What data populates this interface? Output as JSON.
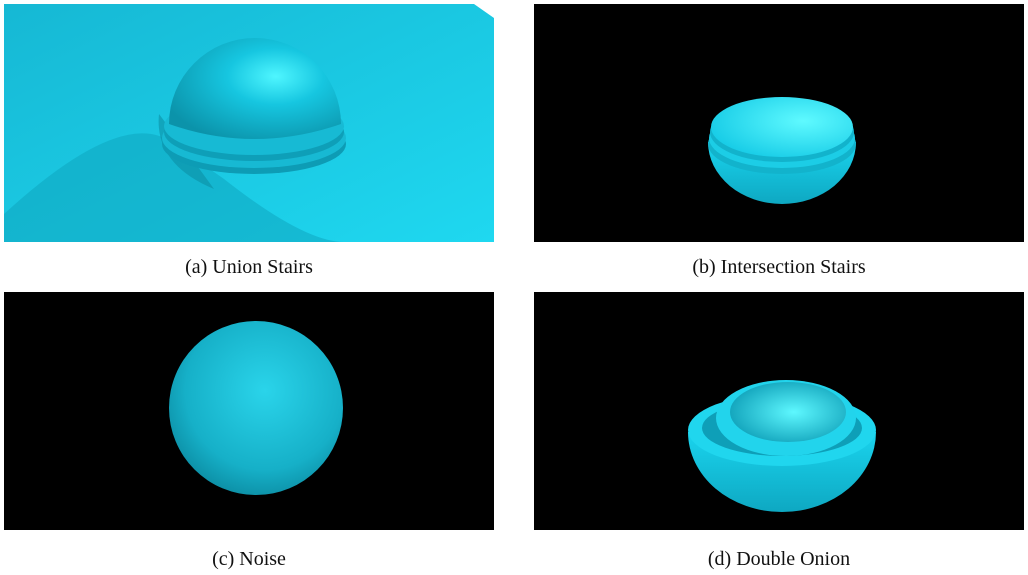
{
  "figure": {
    "panels": [
      {
        "caption": "(a) Union Stairs"
      },
      {
        "caption": "(b) Intersection Stairs"
      },
      {
        "caption": "(c) Noise"
      },
      {
        "caption": "(d) Double Onion"
      }
    ]
  }
}
